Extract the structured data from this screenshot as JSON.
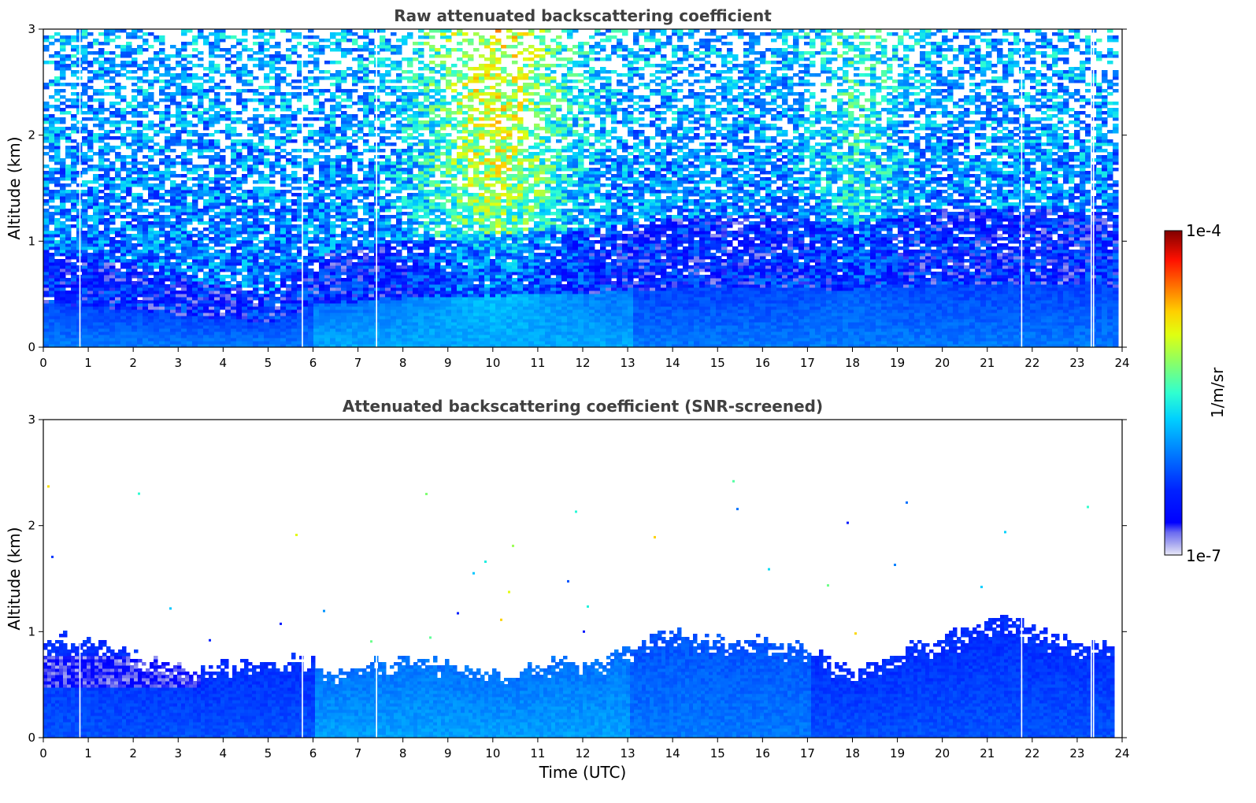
{
  "chart_data": [
    {
      "type": "heatmap",
      "title": "Raw attenuated backscattering coefficient",
      "xlabel": "",
      "ylabel": "Altitude (km)",
      "xlim": [
        0,
        24
      ],
      "ylim": [
        0,
        3
      ],
      "x_ticks": [
        "0",
        "1",
        "2",
        "3",
        "4",
        "5",
        "6",
        "7",
        "8",
        "9",
        "10",
        "11",
        "12",
        "13",
        "14",
        "15",
        "16",
        "17",
        "18",
        "19",
        "20",
        "21",
        "22",
        "23",
        "24"
      ],
      "y_ticks": [
        "0",
        "1",
        "2",
        "3"
      ],
      "data_end_time": 23.8,
      "gap_times": [
        0.8,
        5.75,
        7.4,
        21.75,
        23.3,
        23.35
      ],
      "description_profile": {
        "surface_layer_top_km": [
          [
            0,
            0.9
          ],
          [
            2,
            0.75
          ],
          [
            4,
            0.55
          ],
          [
            5,
            0.5
          ],
          [
            6,
            0.85
          ],
          [
            8,
            1.0
          ],
          [
            10,
            1.05
          ],
          [
            12,
            1.1
          ],
          [
            14,
            1.2
          ],
          [
            16,
            1.25
          ],
          [
            18,
            1.15
          ],
          [
            20,
            1.3
          ],
          [
            22,
            1.3
          ],
          [
            23.8,
            1.25
          ]
        ],
        "aerosol_aloft_peak_hours": [
          9,
          11
        ],
        "secondary_aloft_peak_hours": [
          17.5,
          18.5
        ]
      },
      "grid": false,
      "colormap": "jet",
      "log_scale": true
    },
    {
      "type": "heatmap",
      "title": "Attenuated backscattering coefficient (SNR-screened)",
      "xlabel": "Time (UTC)",
      "ylabel": "Altitude (km)",
      "xlim": [
        0,
        24
      ],
      "ylim": [
        0,
        3
      ],
      "x_ticks": [
        "0",
        "1",
        "2",
        "3",
        "4",
        "5",
        "6",
        "7",
        "8",
        "9",
        "10",
        "11",
        "12",
        "13",
        "14",
        "15",
        "16",
        "17",
        "18",
        "19",
        "20",
        "21",
        "22",
        "23",
        "24"
      ],
      "y_ticks": [
        "0",
        "1",
        "2",
        "3"
      ],
      "data_end_time": 23.8,
      "gap_times": [
        0.8,
        5.75,
        7.4,
        21.75,
        23.3,
        23.35
      ],
      "layer_top_km": [
        [
          0,
          0.92
        ],
        [
          0.5,
          0.95
        ],
        [
          1,
          0.9
        ],
        [
          1.5,
          0.85
        ],
        [
          2,
          0.78
        ],
        [
          2.5,
          0.7
        ],
        [
          3,
          0.65
        ],
        [
          3.5,
          0.65
        ],
        [
          4,
          0.68
        ],
        [
          4.5,
          0.7
        ],
        [
          5,
          0.72
        ],
        [
          5.5,
          0.75
        ],
        [
          6,
          0.7
        ],
        [
          6.5,
          0.62
        ],
        [
          7,
          0.66
        ],
        [
          7.5,
          0.72
        ],
        [
          8,
          0.76
        ],
        [
          8.5,
          0.72
        ],
        [
          9,
          0.66
        ],
        [
          9.5,
          0.62
        ],
        [
          10,
          0.58
        ],
        [
          10.5,
          0.6
        ],
        [
          11,
          0.7
        ],
        [
          11.5,
          0.72
        ],
        [
          12,
          0.72
        ],
        [
          12.5,
          0.75
        ],
        [
          13,
          0.85
        ],
        [
          13.5,
          0.95
        ],
        [
          14,
          0.98
        ],
        [
          14.5,
          0.95
        ],
        [
          15,
          0.93
        ],
        [
          15.5,
          0.9
        ],
        [
          16,
          0.92
        ],
        [
          16.5,
          0.88
        ],
        [
          17,
          0.82
        ],
        [
          17.5,
          0.72
        ],
        [
          18,
          0.62
        ],
        [
          18.5,
          0.7
        ],
        [
          19,
          0.8
        ],
        [
          19.5,
          0.9
        ],
        [
          20,
          0.95
        ],
        [
          20.5,
          1.0
        ],
        [
          21,
          1.08
        ],
        [
          21.5,
          1.12
        ],
        [
          22,
          1.0
        ],
        [
          22.5,
          0.95
        ],
        [
          23,
          0.92
        ],
        [
          23.5,
          0.88
        ],
        [
          23.8,
          0.85
        ]
      ],
      "residual_layer_bright_hours": [
        0,
        3.5
      ],
      "grid": false,
      "colormap": "jet",
      "log_scale": true
    }
  ],
  "colorbar": {
    "label": "1/m/sr",
    "max_label": "1e-4",
    "min_label": "1e-7",
    "range": [
      1e-07,
      0.0001
    ],
    "scale": "log"
  }
}
